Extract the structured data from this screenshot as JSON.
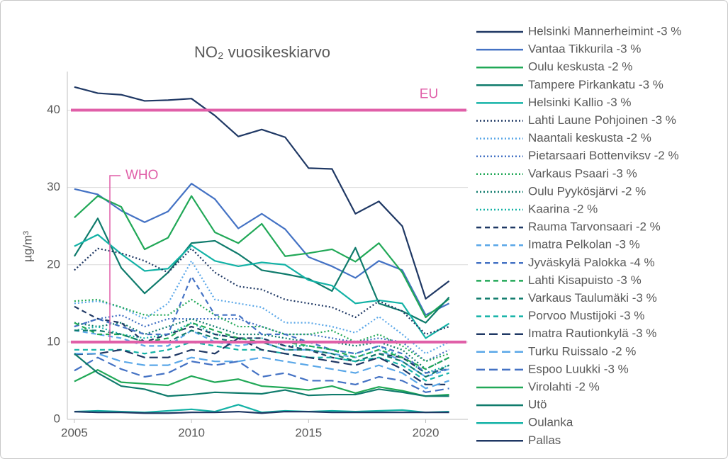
{
  "chart_data": {
    "type": "line",
    "title": "NO₂ vuosikeskiarvo",
    "y_label": "µg/m³",
    "x": [
      2005,
      2006,
      2007,
      2008,
      2009,
      2010,
      2011,
      2012,
      2013,
      2014,
      2015,
      2016,
      2017,
      2018,
      2019,
      2020,
      2021
    ],
    "xlim": [
      2004.7,
      2021.8
    ],
    "xticks": [
      2005,
      2010,
      2015,
      2020
    ],
    "ylim": [
      0,
      45
    ],
    "yticks": [
      0,
      10,
      20,
      30,
      40
    ],
    "grid": true,
    "legend": "right",
    "reference_lines": [
      {
        "label": "EU",
        "value": 40,
        "color": "#e05fa8"
      },
      {
        "label": "WHO",
        "value": 10,
        "color": "#e05fa8"
      }
    ],
    "series": [
      {
        "name": "Helsinki Mannerheimint -3 %",
        "color": "#1f3864",
        "dash": "solid",
        "values": [
          43,
          42.2,
          42,
          41.2,
          41.3,
          41.5,
          39.3,
          36.6,
          37.5,
          36.5,
          32.5,
          32.4,
          26.6,
          28.2,
          25,
          15.6,
          17.9
        ]
      },
      {
        "name": "Vantaa Tikkurila -3 %",
        "color": "#4472c4",
        "dash": "solid",
        "values": [
          29.8,
          29.1,
          27,
          25.5,
          26.9,
          30.5,
          28.5,
          24.7,
          26.6,
          24.6,
          21,
          19.8,
          18.3,
          20.5,
          19.3,
          13.5,
          15
        ]
      },
      {
        "name": "Oulu keskusta -2 %",
        "color": "#21a857",
        "dash": "solid",
        "values": [
          26.1,
          28.9,
          27.5,
          22,
          23.5,
          28.9,
          24.2,
          22.8,
          25.3,
          21.1,
          21.5,
          22,
          20.4,
          22.8,
          19,
          13.2,
          15.6
        ]
      },
      {
        "name": "Tampere Pirkankatu -3 %",
        "color": "#0f7b6c",
        "dash": "solid",
        "values": [
          21.1,
          26,
          19.6,
          16.3,
          19,
          22.8,
          23.1,
          21.4,
          19.3,
          18.8,
          18.2,
          16.6,
          22.2,
          15,
          14,
          12.5,
          15.8
        ]
      },
      {
        "name": "Helsinki Kallio -3 %",
        "color": "#13b2a6",
        "dash": "solid",
        "values": [
          22.4,
          23.9,
          21.4,
          19.2,
          19.5,
          22.5,
          20.5,
          19.8,
          20.3,
          20,
          18,
          17.3,
          15,
          15.4,
          15,
          10.5,
          12.4
        ]
      },
      {
        "name": "Lahti Laune Pohjoinen -3 %",
        "color": "#1f3864",
        "dash": "dotted",
        "values": [
          19.3,
          22.1,
          21.5,
          20.5,
          19,
          22.1,
          19,
          17.2,
          16.8,
          15.5,
          15,
          14.5,
          13.2,
          15.3,
          14,
          11,
          12
        ]
      },
      {
        "name": "Naantali keskusta -2 %",
        "color": "#5aa7e8",
        "dash": "dotted",
        "values": [
          15,
          15.3,
          14.5,
          13,
          15,
          20.5,
          15.5,
          15,
          14.5,
          12.5,
          12.5,
          12,
          11.2,
          13.3,
          11,
          8.5,
          10
        ]
      },
      {
        "name": "Pietarsaari Bottenviksv -2 %",
        "color": "#4472c4",
        "dash": "dotted",
        "values": [
          12,
          13,
          13.5,
          12,
          13,
          13,
          13,
          13,
          12,
          11,
          11,
          10.5,
          10,
          10.5,
          10,
          7.5,
          9
        ]
      },
      {
        "name": "Varkaus Psaari -3 %",
        "color": "#21a857",
        "dash": "dotted",
        "values": [
          15.3,
          15.5,
          14.5,
          13.5,
          13.5,
          15.5,
          13.5,
          12,
          12,
          11,
          11,
          11.5,
          10,
          11,
          9.5,
          7.5,
          8.5
        ]
      },
      {
        "name": "Oulu Pyykösjärvi -2 %",
        "color": "#0f7b6c",
        "dash": "dotted",
        "values": [
          12.5,
          12,
          12.5,
          11,
          12,
          13,
          12,
          11,
          11,
          10.5,
          10,
          10,
          9.5,
          10,
          9,
          6.5,
          8
        ]
      },
      {
        "name": "Kaarina -2 %",
        "color": "#13b2a6",
        "dash": "dotted",
        "values": [
          11.5,
          12,
          11,
          10.5,
          11,
          12.5,
          11,
          10.5,
          10.5,
          9.5,
          9.5,
          9,
          8.5,
          9.5,
          8,
          6,
          7
        ]
      },
      {
        "name": "Rauma Tarvonsaari -2 %",
        "color": "#1f3864",
        "dash": "dashed",
        "values": [
          14.6,
          13,
          12.5,
          10,
          11,
          12,
          11,
          10.5,
          10.5,
          9.5,
          9,
          8,
          7.5,
          8.5,
          8,
          6,
          6.5
        ]
      },
      {
        "name": "Imatra Pelkolan -3 %",
        "color": "#5aa7e8",
        "dash": "dashed",
        "values": [
          11.5,
          11,
          10.5,
          9.5,
          9.5,
          11.5,
          10,
          9.5,
          10,
          9,
          9,
          8.5,
          8,
          9,
          7.5,
          5.5,
          6.5
        ]
      },
      {
        "name": "Jyväskylä Palokka -4 %",
        "color": "#4472c4",
        "dash": "dashed",
        "values": [
          12,
          13,
          12,
          11,
          11,
          18.5,
          13.5,
          13.5,
          11,
          11,
          10,
          9,
          8.5,
          9.5,
          8.5,
          6,
          6.5
        ]
      },
      {
        "name": "Lahti Kisapuisto -3 %",
        "color": "#21a857",
        "dash": "dashed",
        "values": [
          12.5,
          11,
          11,
          10,
          10.5,
          12.5,
          11.5,
          10.5,
          10,
          10,
          9.5,
          9,
          8,
          9,
          8,
          6.5,
          8
        ]
      },
      {
        "name": "Varkaus Taulumäki -3 %",
        "color": "#0f7b6c",
        "dash": "dashed",
        "values": [
          11.5,
          11.5,
          11,
          10,
          10,
          11.5,
          10.5,
          10,
          10,
          9,
          9,
          8.5,
          7.5,
          8.5,
          7.5,
          5.5,
          7
        ]
      },
      {
        "name": "Porvoo Mustijoki -3 %",
        "color": "#13b2a6",
        "dash": "dashed",
        "values": [
          9,
          9,
          9,
          8.5,
          9,
          10,
          9.5,
          9,
          9,
          8.5,
          8,
          8,
          7.5,
          8,
          7,
          5,
          6
        ]
      },
      {
        "name": "Imatra Rautionkylä -3 %",
        "color": "#1f3864",
        "dash": "longdash",
        "values": [
          8.4,
          8.5,
          9,
          8,
          8,
          9,
          8.5,
          10.5,
          9,
          8.5,
          8,
          7.5,
          7,
          8,
          6.5,
          4.5,
          4.5
        ]
      },
      {
        "name": "Turku Ruissalo -2 %",
        "color": "#5aa7e8",
        "dash": "longdash",
        "values": [
          8.5,
          8.5,
          7.5,
          7,
          7,
          8,
          7.5,
          7.5,
          8,
          7.5,
          7,
          6.5,
          6,
          7,
          6,
          4,
          5
        ]
      },
      {
        "name": "Espoo Luukki -3 %",
        "color": "#4472c4",
        "dash": "longdash",
        "values": [
          6.3,
          8,
          6.5,
          5.5,
          6,
          7.5,
          7,
          7.5,
          5.5,
          6,
          5,
          5,
          4.5,
          5.5,
          5,
          3.5,
          4
        ]
      },
      {
        "name": "Virolahti -2 %",
        "color": "#21a857",
        "dash": "solid",
        "values": [
          4.9,
          6.4,
          4.8,
          4.6,
          4.4,
          5.6,
          4.8,
          5.2,
          4.3,
          4.1,
          3.8,
          4.3,
          3.4,
          4.2,
          3.7,
          3,
          3.2
        ]
      },
      {
        "name": "Utö",
        "color": "#0f7b6c",
        "dash": "solid",
        "values": [
          8.5,
          6,
          4.3,
          3.9,
          3,
          3.2,
          3.5,
          3.4,
          3.3,
          3.8,
          3.1,
          3.2,
          3.2,
          3.9,
          3.5,
          3,
          3
        ]
      },
      {
        "name": "Oulanka",
        "color": "#13b2a6",
        "dash": "solid",
        "values": [
          1,
          1.1,
          1,
          0.9,
          1.1,
          1.3,
          1,
          1.9,
          0.9,
          1.1,
          1,
          1.1,
          1,
          1.1,
          1.2,
          0.9,
          1
        ]
      },
      {
        "name": "Pallas",
        "color": "#1f3864",
        "dash": "solid",
        "values": [
          1,
          0.9,
          0.9,
          0.8,
          0.8,
          0.9,
          0.9,
          1,
          0.8,
          1,
          1,
          0.9,
          0.9,
          0.9,
          0.9,
          0.9,
          0.9
        ]
      }
    ]
  }
}
